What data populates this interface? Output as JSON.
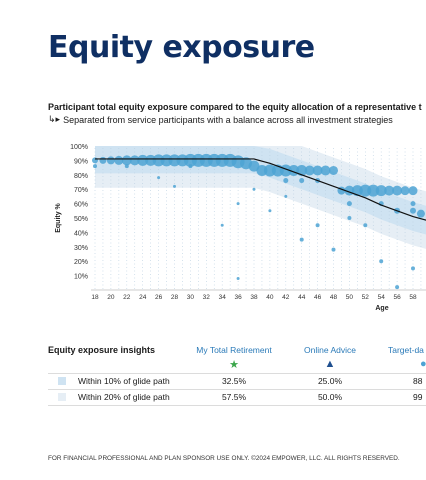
{
  "page": {
    "title": "Equity exposure",
    "subtitle": "Participant total equity exposure compared to the equity allocation of a representative t",
    "subnote_icon": "arrow-return-icon",
    "subnote": "Separated from service participants with a balance across all investment strategies",
    "footer": "FOR FINANCIAL PROFESSIONAL AND PLAN SPONSOR USE ONLY. ©2024 EMPOWER, LLC. ALL RIGHTS RESERVED."
  },
  "chart_data": {
    "type": "scatter",
    "xlabel": "Age",
    "ylabel": "Equity %",
    "xlim": [
      17,
      60
    ],
    "ylim": [
      0,
      100
    ],
    "x_ticks": [
      "18",
      "20",
      "22",
      "24",
      "26",
      "28",
      "30",
      "32",
      "34",
      "36",
      "38",
      "40",
      "42",
      "44",
      "46",
      "48",
      "50",
      "52",
      "54",
      "56",
      "58"
    ],
    "y_ticks": [
      "100%",
      "90%",
      "80%",
      "70%",
      "60%",
      "50%",
      "40%",
      "30%",
      "20%",
      "10%"
    ],
    "grid": "vertical dotted",
    "colors": {
      "points": "#4da3d4",
      "band10": "#cfe3f2",
      "band20": "#e6eef5",
      "glide_path": "#111111"
    },
    "glide_path": [
      [
        18,
        91
      ],
      [
        38,
        91
      ],
      [
        40,
        88
      ],
      [
        42,
        84
      ],
      [
        44,
        80
      ],
      [
        46,
        76
      ],
      [
        48,
        72
      ],
      [
        50,
        68
      ],
      [
        52,
        64
      ],
      [
        54,
        59
      ],
      [
        56,
        55
      ],
      [
        58,
        51
      ],
      [
        60,
        48
      ]
    ],
    "bubbles": [
      {
        "x": 18,
        "y": 90,
        "size": 3
      },
      {
        "x": 19,
        "y": 90,
        "size": 3.5
      },
      {
        "x": 20,
        "y": 90,
        "size": 4
      },
      {
        "x": 21,
        "y": 90,
        "size": 4.5
      },
      {
        "x": 22,
        "y": 90,
        "size": 5
      },
      {
        "x": 23,
        "y": 90,
        "size": 5
      },
      {
        "x": 24,
        "y": 90,
        "size": 5.5
      },
      {
        "x": 25,
        "y": 90,
        "size": 5.5
      },
      {
        "x": 26,
        "y": 90,
        "size": 6
      },
      {
        "x": 27,
        "y": 90,
        "size": 6
      },
      {
        "x": 28,
        "y": 90,
        "size": 6
      },
      {
        "x": 29,
        "y": 90,
        "size": 6
      },
      {
        "x": 30,
        "y": 90,
        "size": 6.5
      },
      {
        "x": 31,
        "y": 90,
        "size": 6.5
      },
      {
        "x": 32,
        "y": 90,
        "size": 6.5
      },
      {
        "x": 33,
        "y": 90,
        "size": 6.5
      },
      {
        "x": 34,
        "y": 90,
        "size": 6.5
      },
      {
        "x": 35,
        "y": 90,
        "size": 6.5
      },
      {
        "x": 36,
        "y": 89,
        "size": 6.5
      },
      {
        "x": 37,
        "y": 88,
        "size": 6
      },
      {
        "x": 38,
        "y": 86,
        "size": 5.5
      },
      {
        "x": 39,
        "y": 83,
        "size": 5.5
      },
      {
        "x": 40,
        "y": 83,
        "size": 6
      },
      {
        "x": 41,
        "y": 83,
        "size": 6
      },
      {
        "x": 42,
        "y": 83,
        "size": 6
      },
      {
        "x": 43,
        "y": 83,
        "size": 5.5
      },
      {
        "x": 44,
        "y": 83,
        "size": 5.5
      },
      {
        "x": 45,
        "y": 83,
        "size": 5
      },
      {
        "x": 46,
        "y": 83,
        "size": 5
      },
      {
        "x": 47,
        "y": 83,
        "size": 5
      },
      {
        "x": 48,
        "y": 83,
        "size": 4.5
      },
      {
        "x": 49,
        "y": 69,
        "size": 4
      },
      {
        "x": 50,
        "y": 69,
        "size": 5
      },
      {
        "x": 51,
        "y": 69,
        "size": 5.5
      },
      {
        "x": 52,
        "y": 69,
        "size": 6
      },
      {
        "x": 53,
        "y": 69,
        "size": 6
      },
      {
        "x": 54,
        "y": 69,
        "size": 5.5
      },
      {
        "x": 55,
        "y": 69,
        "size": 5
      },
      {
        "x": 56,
        "y": 69,
        "size": 5
      },
      {
        "x": 57,
        "y": 69,
        "size": 4.5
      },
      {
        "x": 58,
        "y": 69,
        "size": 4.5
      },
      {
        "x": 59,
        "y": 53,
        "size": 4
      },
      {
        "x": 18,
        "y": 86,
        "size": 2
      },
      {
        "x": 22,
        "y": 86,
        "size": 2
      },
      {
        "x": 30,
        "y": 86,
        "size": 2
      },
      {
        "x": 42,
        "y": 76,
        "size": 2.5
      },
      {
        "x": 44,
        "y": 76,
        "size": 2.5
      },
      {
        "x": 46,
        "y": 76,
        "size": 2.5
      },
      {
        "x": 50,
        "y": 60,
        "size": 2.5
      },
      {
        "x": 54,
        "y": 60,
        "size": 2.5
      },
      {
        "x": 58,
        "y": 60,
        "size": 2.5
      },
      {
        "x": 56,
        "y": 55,
        "size": 3
      },
      {
        "x": 58,
        "y": 55,
        "size": 3
      },
      {
        "x": 50,
        "y": 50,
        "size": 2
      },
      {
        "x": 52,
        "y": 45,
        "size": 2
      },
      {
        "x": 46,
        "y": 45,
        "size": 2
      },
      {
        "x": 44,
        "y": 35,
        "size": 2
      },
      {
        "x": 48,
        "y": 28,
        "size": 2
      },
      {
        "x": 54,
        "y": 20,
        "size": 2
      },
      {
        "x": 58,
        "y": 15,
        "size": 2
      },
      {
        "x": 36,
        "y": 60,
        "size": 1.5
      },
      {
        "x": 34,
        "y": 45,
        "size": 1.5
      },
      {
        "x": 26,
        "y": 78,
        "size": 1.5
      },
      {
        "x": 28,
        "y": 72,
        "size": 1.5
      },
      {
        "x": 40,
        "y": 55,
        "size": 1.5
      },
      {
        "x": 42,
        "y": 65,
        "size": 1.5
      },
      {
        "x": 38,
        "y": 70,
        "size": 1.5
      },
      {
        "x": 36,
        "y": 8,
        "size": 1.5
      },
      {
        "x": 56,
        "y": 2,
        "size": 2
      }
    ]
  },
  "insights": {
    "title": "Equity exposure insights",
    "columns": [
      {
        "label": "My Total Retirement",
        "marker": "star-icon",
        "color": "#3aa64a",
        "glyph": "★"
      },
      {
        "label": "Online Advice",
        "marker": "triangle-icon",
        "color": "#1f4f8f",
        "glyph": "▲"
      },
      {
        "label": "Target-da",
        "marker": "circle-icon",
        "color": "#4da3d4",
        "glyph": "●"
      }
    ],
    "rows": [
      {
        "label": "Within 10% of glide path",
        "swatch": "#cfe3f2",
        "values": [
          "32.5%",
          "25.0%",
          "88"
        ]
      },
      {
        "label": "Within 20% of glide path",
        "swatch": "#e6eef5",
        "values": [
          "57.5%",
          "50.0%",
          "99"
        ]
      }
    ]
  }
}
